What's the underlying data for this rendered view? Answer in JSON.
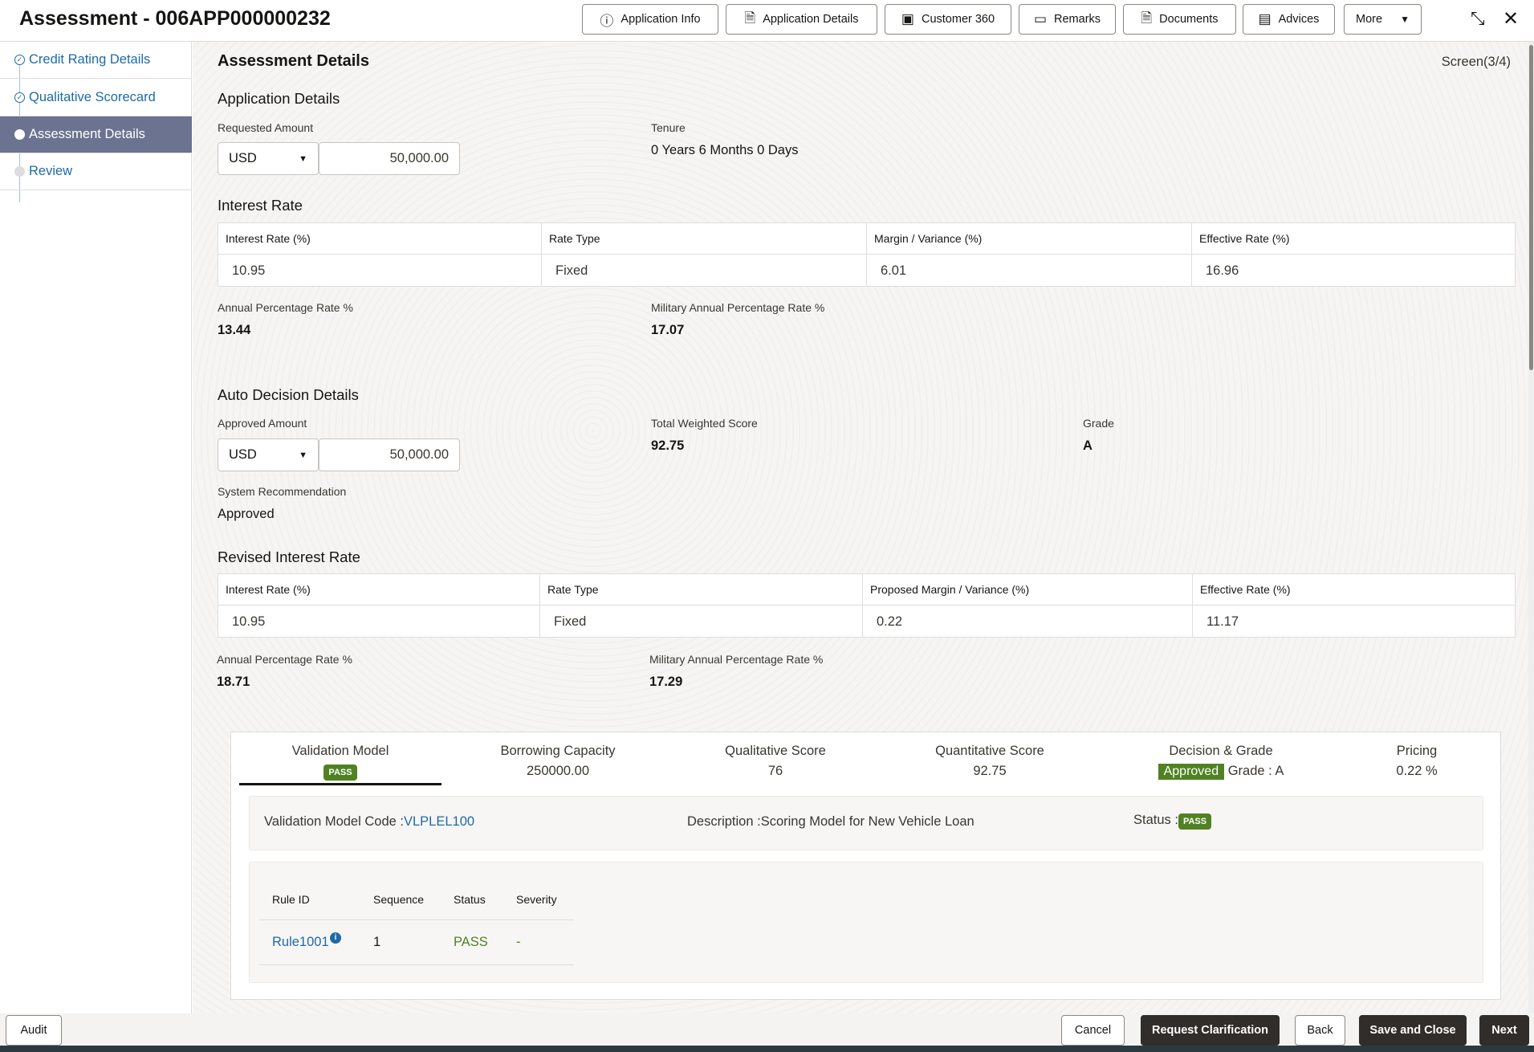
{
  "header": {
    "title": "Assessment - 006APP000000232",
    "buttons": [
      {
        "label": "Application Info",
        "icon": "info-icon"
      },
      {
        "label": "Application Details",
        "icon": "document-icon"
      },
      {
        "label": "Customer 360",
        "icon": "user-card-icon"
      },
      {
        "label": "Remarks",
        "icon": "comment-icon"
      },
      {
        "label": "Documents",
        "icon": "document-icon"
      },
      {
        "label": "Advices",
        "icon": "list-document-icon"
      },
      {
        "label": "More",
        "icon": "caret-down-icon"
      }
    ]
  },
  "sidebar": {
    "items": [
      {
        "label": "Credit Rating Details",
        "state": "completed"
      },
      {
        "label": "Qualitative Scorecard",
        "state": "completed"
      },
      {
        "label": "Assessment Details",
        "state": "active"
      },
      {
        "label": "Review",
        "state": "pending"
      }
    ]
  },
  "main": {
    "title": "Assessment Details",
    "screen": "Screen(3/4)",
    "application": {
      "heading": "Application Details",
      "requested_label": "Requested Amount",
      "currency": "USD",
      "amount": "50,000.00",
      "tenure_label": "Tenure",
      "tenure": "0 Years 6 Months 0 Days"
    },
    "interest": {
      "heading": "Interest Rate",
      "headers": [
        "Interest Rate (%)",
        "Rate Type",
        "Margin / Variance (%)",
        "Effective Rate (%)"
      ],
      "values": [
        "10.95",
        "Fixed",
        "6.01",
        "16.96"
      ],
      "apr_label": "Annual Percentage Rate %",
      "apr": "13.44",
      "mapr_label": "Military Annual Percentage Rate %",
      "mapr": "17.07"
    },
    "auto": {
      "heading": "Auto Decision Details",
      "approved_label": "Approved Amount",
      "currency": "USD",
      "amount": "50,000.00",
      "tws_label": "Total Weighted Score",
      "tws": "92.75",
      "grade_label": "Grade",
      "grade": "A",
      "rec_label": "System Recommendation",
      "rec": "Approved"
    },
    "revised": {
      "heading": "Revised Interest Rate",
      "headers": [
        "Interest Rate (%)",
        "Rate Type",
        "Proposed Margin / Variance (%)",
        "Effective Rate (%)"
      ],
      "values": [
        "10.95",
        "Fixed",
        "0.22",
        "11.17"
      ],
      "apr_label": "Annual Percentage Rate %",
      "apr": "18.71",
      "mapr_label": "Military Annual Percentage Rate %",
      "mapr": "17.29"
    },
    "tabs": [
      {
        "label": "Validation Model",
        "badge": "PASS"
      },
      {
        "label": "Borrowing Capacity",
        "value": "250000.00"
      },
      {
        "label": "Qualitative Score",
        "value": "76"
      },
      {
        "label": "Quantitative Score",
        "value": "92.75"
      },
      {
        "label": "Decision & Grade",
        "badge": "Approved",
        "value": "Grade : A"
      },
      {
        "label": "Pricing",
        "value": "0.22 %"
      }
    ],
    "validation": {
      "code_label": "Validation Model Code :",
      "code": "VLPLEL100",
      "desc_label": "Description :",
      "desc": "Scoring Model for New Vehicle Loan",
      "status_label": "Status :",
      "status": "PASS"
    },
    "rules": {
      "headers": [
        "Rule ID",
        "Sequence",
        "Status",
        "Severity"
      ],
      "rows": [
        {
          "id": "Rule1001",
          "sequence": "1",
          "status": "PASS",
          "severity": "-"
        }
      ]
    }
  },
  "footer": {
    "audit": "Audit",
    "cancel": "Cancel",
    "request": "Request Clarification",
    "back": "Back",
    "save": "Save and Close",
    "next": "Next"
  },
  "colors": {
    "accent": "#1e6aa6",
    "pass": "#508223",
    "active_nav": "#6b7390",
    "dark_button": "#312d2a"
  }
}
